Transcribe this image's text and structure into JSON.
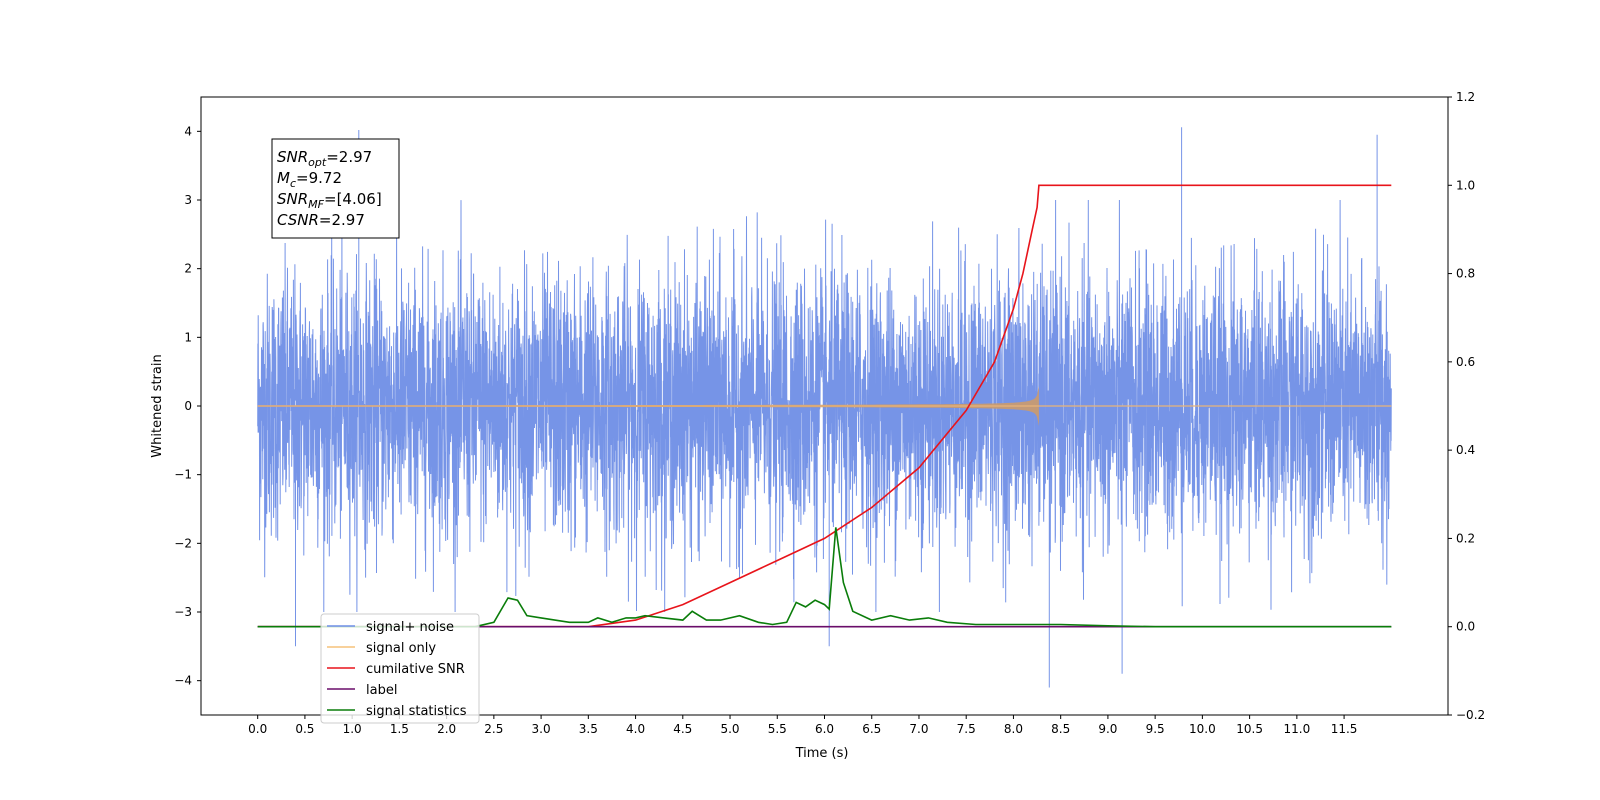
{
  "chart_data": {
    "type": "line",
    "xlabel": "Time (s)",
    "ylabel": "Whitened strain",
    "xlim": [
      -0.6,
      12.6
    ],
    "ylim": [
      -4.5,
      4.5
    ],
    "y2lim": [
      -0.2,
      1.2
    ],
    "x_ticks": [
      0.0,
      0.5,
      1.0,
      1.5,
      2.0,
      2.5,
      3.0,
      3.5,
      4.0,
      4.5,
      5.0,
      5.5,
      6.0,
      6.5,
      7.0,
      7.5,
      8.0,
      8.5,
      9.0,
      9.5,
      10.0,
      10.5,
      11.0,
      11.5
    ],
    "x_tick_labels": [
      "0.0",
      "0.5",
      "1.0",
      "1.5",
      "2.0",
      "2.5",
      "3.0",
      "3.5",
      "4.0",
      "4.5",
      "5.0",
      "5.5",
      "6.0",
      "6.5",
      "7.0",
      "7.5",
      "8.0",
      "8.5",
      "9.0",
      "9.5",
      "10.0",
      "10.5",
      "11.0",
      "11.5"
    ],
    "y_ticks": [
      -4,
      -3,
      -2,
      -1,
      0,
      1,
      2,
      3,
      4
    ],
    "y_tick_labels": [
      "−4",
      "−3",
      "−2",
      "−1",
      "0",
      "1",
      "2",
      "3",
      "4"
    ],
    "y2_ticks": [
      -0.2,
      0.0,
      0.2,
      0.4,
      0.6,
      0.8,
      1.0,
      1.2
    ],
    "y2_tick_labels": [
      "−0.2",
      "0.0",
      "0.2",
      "0.4",
      "0.6",
      "0.8",
      "1.0",
      "1.2"
    ],
    "grid": false,
    "legend_position": "lower-left",
    "annotation": {
      "lines": [
        {
          "symbol": "SNR",
          "sub": "opt",
          "value": "=2.97"
        },
        {
          "symbol": "M",
          "sub": "c",
          "value": "=9.72"
        },
        {
          "symbol": "SNR",
          "sub": "MF",
          "value": "=[4.06]"
        },
        {
          "symbol": "CSNR",
          "sub": "",
          "value": "=2.97"
        }
      ]
    },
    "series": [
      {
        "name": "signal+ noise",
        "color": "#6f8ee6",
        "axis": "left",
        "time_range": [
          0.0,
          12.0
        ],
        "description_values": {
          "typical_amplitude": 1.9,
          "max": 4.06,
          "min": -4.1
        },
        "spikes": [
          [
            1.07,
            4.02
          ],
          [
            9.78,
            4.06
          ],
          [
            11.85,
            3.95
          ],
          [
            8.38,
            -4.1
          ],
          [
            9.15,
            -3.9
          ],
          [
            0.4,
            -3.5
          ],
          [
            6.05,
            -3.5
          ]
        ]
      },
      {
        "name": "signal only",
        "color": "#f5a623",
        "axis": "left",
        "time_range": [
          0.0,
          12.0
        ],
        "chirp_end": 8.27,
        "peak_amplitude": 0.4
      },
      {
        "name": "cumilative SNR",
        "color": "#e8141b",
        "axis": "right",
        "x": [
          0.0,
          3.5,
          4.0,
          4.5,
          5.0,
          5.5,
          6.0,
          6.5,
          7.0,
          7.5,
          7.8,
          8.0,
          8.1,
          8.2,
          8.25,
          8.27,
          8.3,
          12.0
        ],
        "y": [
          0.0,
          0.0,
          0.015,
          0.05,
          0.1,
          0.15,
          0.2,
          0.27,
          0.36,
          0.49,
          0.6,
          0.72,
          0.8,
          0.9,
          0.95,
          1.0,
          1.0,
          1.0
        ]
      },
      {
        "name": "label",
        "color": "#6a0d6a",
        "axis": "right",
        "x": [
          0.0,
          12.0
        ],
        "y": [
          0.0,
          0.0
        ]
      },
      {
        "name": "signal statistics",
        "color": "#0a7d0a",
        "axis": "right",
        "x": [
          0.0,
          2.3,
          2.5,
          2.65,
          2.75,
          2.85,
          3.0,
          3.3,
          3.5,
          3.6,
          3.75,
          3.9,
          4.0,
          4.1,
          4.3,
          4.5,
          4.6,
          4.75,
          4.9,
          5.1,
          5.3,
          5.45,
          5.6,
          5.7,
          5.8,
          5.9,
          6.0,
          6.05,
          6.12,
          6.2,
          6.3,
          6.5,
          6.7,
          6.9,
          7.1,
          7.3,
          7.6,
          8.0,
          8.5,
          9.0,
          9.5,
          12.0
        ],
        "y": [
          0.0,
          0.0,
          0.01,
          0.065,
          0.06,
          0.025,
          0.02,
          0.01,
          0.01,
          0.02,
          0.01,
          0.02,
          0.02,
          0.025,
          0.02,
          0.015,
          0.035,
          0.015,
          0.015,
          0.025,
          0.01,
          0.005,
          0.01,
          0.055,
          0.045,
          0.06,
          0.05,
          0.04,
          0.225,
          0.1,
          0.035,
          0.015,
          0.025,
          0.015,
          0.02,
          0.01,
          0.005,
          0.005,
          0.005,
          0.002,
          0.0,
          0.0
        ]
      }
    ],
    "legend_entries": [
      {
        "label": "signal+ noise",
        "color": "#6f8ee6"
      },
      {
        "label": "signal only",
        "color": "#f5c27a"
      },
      {
        "label": "cumilative SNR",
        "color": "#e8141b"
      },
      {
        "label": "label",
        "color": "#6a0d6a"
      },
      {
        "label": "signal statistics",
        "color": "#0a7d0a"
      }
    ]
  }
}
